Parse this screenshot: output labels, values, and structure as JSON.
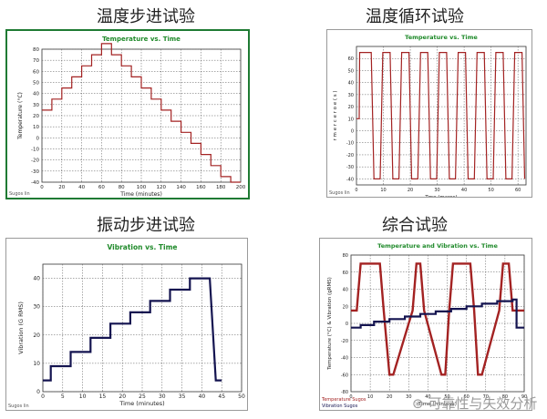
{
  "headings": [
    "温度步进试验",
    "温度循环试验",
    "振动步进试验",
    "综合试验"
  ],
  "colors": {
    "frame_green": "#1f7a33",
    "title_green": "#1f8a2a",
    "temp_red": "#a32222",
    "vib_navy": "#141450",
    "grid": "#555555"
  },
  "watermark": "可靠性与失效分析",
  "chart_data": [
    {
      "type": "line",
      "title": "Temperature vs. Time",
      "xlabel": "Time (minutes)",
      "ylabel": "Temperature (°C)",
      "xlim": [
        0,
        200
      ],
      "ylim": [
        -40,
        80
      ],
      "xticks": [
        0,
        20,
        40,
        60,
        80,
        100,
        120,
        140,
        160,
        180,
        200
      ],
      "yticks": [
        -40,
        -30,
        -20,
        -10,
        0,
        10,
        20,
        30,
        40,
        50,
        60,
        70,
        80
      ],
      "footer_left": "Sugos lin",
      "series": [
        {
          "step": true,
          "x": [
            0,
            10,
            20,
            30,
            40,
            50,
            60,
            70,
            80,
            90,
            100,
            110,
            120,
            130,
            140,
            150,
            160,
            170,
            180,
            190,
            200
          ],
          "y": [
            25,
            35,
            45,
            55,
            65,
            75,
            85,
            75,
            65,
            55,
            45,
            35,
            25,
            15,
            5,
            -5,
            -15,
            -25,
            -35,
            -40,
            -40
          ]
        }
      ]
    },
    {
      "type": "line",
      "title": "Temperature vs. Time",
      "xlabel": "Tme (mares)",
      "ylabel": "r  m  e  r  c  e  r  o  e  (  s  )",
      "xlim": [
        0,
        63
      ],
      "ylim": [
        -45,
        70
      ],
      "xticks": [
        0,
        10,
        20,
        30,
        40,
        50,
        60
      ],
      "yticks": [
        -40,
        -30,
        -20,
        -10,
        0,
        10,
        20,
        30,
        40,
        50,
        60
      ],
      "footer_left": "Sugos lin",
      "series": [
        {
          "step": false,
          "x": [
            0,
            1,
            1.2,
            5.5,
            6.5,
            8.8,
            9.8,
            12.5,
            13.5,
            15.8,
            16.8,
            19.5,
            20.5,
            22.8,
            23.8,
            26.5,
            27.5,
            29.8,
            30.8,
            33.5,
            34.5,
            36.8,
            37.8,
            40.5,
            41.5,
            43.8,
            44.8,
            47.5,
            48.5,
            50.8,
            51.8,
            54.5,
            55.5,
            57.8,
            58.8,
            61.5,
            62.5
          ],
          "y": [
            10,
            10,
            65,
            65,
            -40,
            -40,
            65,
            65,
            -40,
            -40,
            65,
            65,
            -40,
            -40,
            65,
            65,
            -40,
            -40,
            65,
            65,
            -40,
            -40,
            65,
            65,
            -40,
            -40,
            65,
            65,
            -40,
            -40,
            65,
            65,
            -40,
            -40,
            65,
            65,
            -40
          ]
        }
      ]
    },
    {
      "type": "line",
      "title": "Vibration vs. Time",
      "xlabel": "Time (minutes)",
      "ylabel": "Vibration (G RMS)",
      "xlim": [
        0,
        50
      ],
      "ylim": [
        0,
        45
      ],
      "xticks": [
        0,
        5,
        10,
        15,
        20,
        25,
        30,
        35,
        40,
        45,
        50
      ],
      "yticks": [
        0,
        10,
        20,
        30,
        40
      ],
      "footer_left": "Sugos lin",
      "series": [
        {
          "step": false,
          "x": [
            0,
            2,
            2,
            7,
            7,
            12,
            12,
            17,
            17,
            22,
            22,
            27,
            27,
            32,
            32,
            37,
            37,
            40,
            40,
            42,
            42,
            43.5,
            45
          ],
          "y": [
            4,
            4,
            9,
            9,
            14,
            14,
            19,
            19,
            24,
            24,
            28,
            28,
            32,
            32,
            36,
            36,
            40,
            40,
            40,
            40,
            40,
            4,
            4
          ]
        }
      ]
    },
    {
      "type": "line",
      "title": "Temperature and Vibration vs. Time",
      "xlabel": "Time (minutes)",
      "ylabel": "Temperature (°C) & Vibration (gRMS)",
      "xlim": [
        0,
        90
      ],
      "ylim": [
        -80,
        80
      ],
      "xticks": [
        0,
        10,
        20,
        30,
        40,
        50,
        60,
        70,
        80,
        90
      ],
      "yticks": [
        -80,
        -60,
        -40,
        -20,
        0,
        20,
        40,
        60,
        80
      ],
      "footer_left": "Temperature Sugos",
      "footer_left2": "Vibration Sugos",
      "series": [
        {
          "step": false,
          "x": [
            0,
            3,
            5,
            15,
            17,
            20,
            22,
            32,
            34,
            36,
            38,
            47,
            49,
            51,
            53,
            62,
            64,
            66,
            68,
            77,
            79,
            82,
            84,
            88,
            90
          ],
          "y": [
            15,
            15,
            70,
            70,
            15,
            -60,
            -60,
            15,
            70,
            70,
            15,
            -60,
            -60,
            15,
            70,
            70,
            15,
            -60,
            -60,
            15,
            70,
            70,
            15,
            15,
            15
          ]
        },
        {
          "step": true,
          "x": [
            0,
            5,
            12,
            20,
            28,
            36,
            44,
            52,
            60,
            68,
            76,
            84,
            86,
            90
          ],
          "y": [
            -5,
            -2,
            2,
            5,
            8,
            11,
            14,
            17,
            20,
            23,
            26,
            28,
            -5,
            -5
          ]
        }
      ]
    }
  ]
}
